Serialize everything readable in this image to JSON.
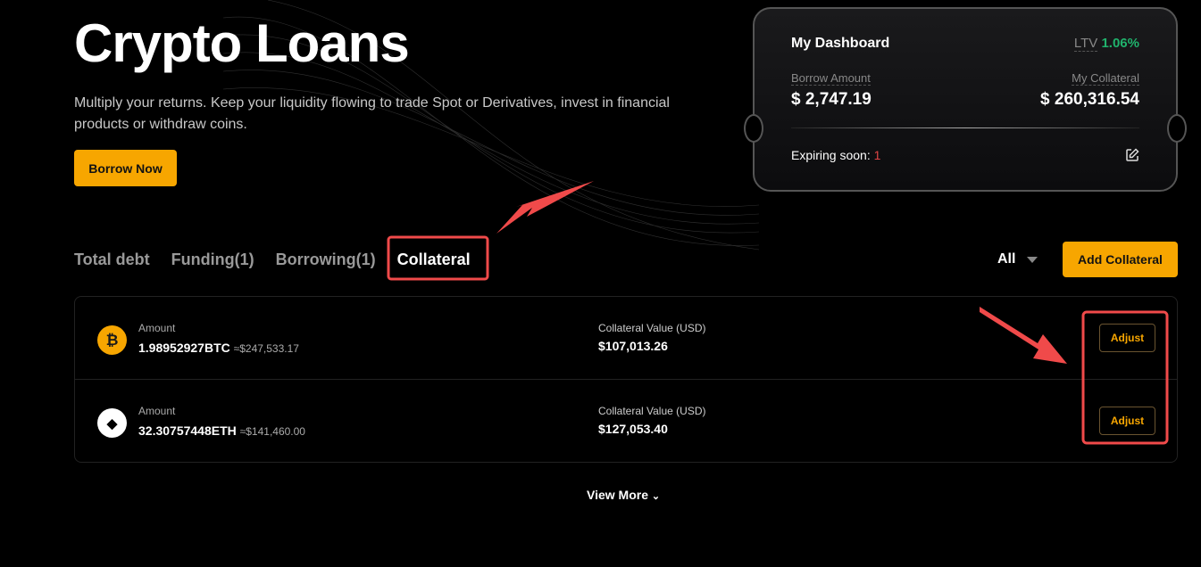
{
  "hero": {
    "title": "Crypto Loans",
    "subtitle": "Multiply your returns. Keep your liquidity flowing to trade Spot or Derivatives, invest in financial products or withdraw coins.",
    "borrow_now": "Borrow Now"
  },
  "dashboard": {
    "title": "My Dashboard",
    "ltv_label": "LTV",
    "ltv_value": "1.06%",
    "borrow_label": "Borrow Amount",
    "borrow_value": "$ 2,747.19",
    "collateral_label": "My Collateral",
    "collateral_value": "$ 260,316.54",
    "expiring_label": "Expiring soon:",
    "expiring_count": "1",
    "ltv_color": "#20b26c"
  },
  "tabs": [
    {
      "label": "Total debt"
    },
    {
      "label": "Funding(1)"
    },
    {
      "label": "Borrowing(1)"
    },
    {
      "label": "Collateral",
      "active": true
    }
  ],
  "filter": {
    "selected": "All"
  },
  "add_collateral": "Add Collateral",
  "rows": [
    {
      "coin": "BTC",
      "icon": "bitcoin-icon",
      "amount_label": "Amount",
      "amount": "1.98952927BTC",
      "approx": "≈$247,533.17",
      "value_label": "Collateral Value (USD)",
      "value": "$107,013.26",
      "action": "Adjust"
    },
    {
      "coin": "ETH",
      "icon": "ethereum-icon",
      "amount_label": "Amount",
      "amount": "32.30757448ETH",
      "approx": "≈$141,460.00",
      "value_label": "Collateral Value (USD)",
      "value": "$127,053.40",
      "action": "Adjust"
    }
  ],
  "view_more": "View More",
  "accent": "#f7a600"
}
